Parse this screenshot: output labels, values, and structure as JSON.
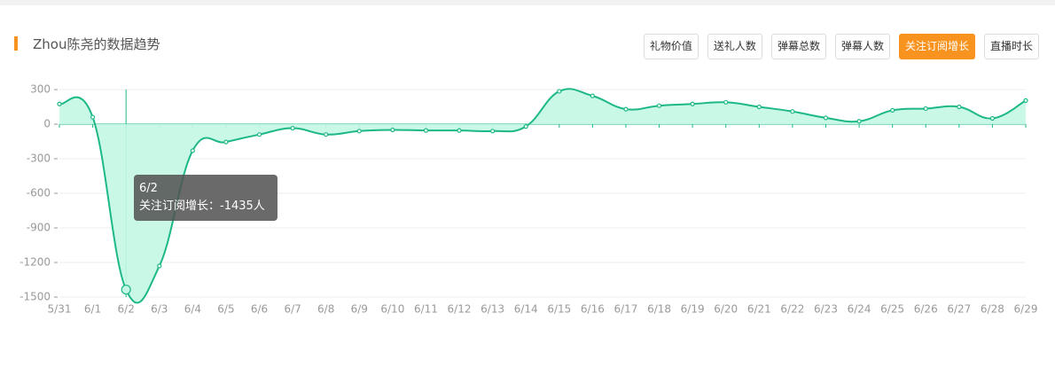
{
  "header": {
    "title": "Zhou陈尧的数据趋势",
    "buttons": [
      {
        "label": "礼物价值",
        "active": false
      },
      {
        "label": "送礼人数",
        "active": false
      },
      {
        "label": "弹幕总数",
        "active": false
      },
      {
        "label": "弹幕人数",
        "active": false
      },
      {
        "label": "关注订阅增长",
        "active": true
      },
      {
        "label": "直播时长",
        "active": false
      }
    ]
  },
  "chart_data": {
    "type": "line",
    "categories": [
      "5/31",
      "6/1",
      "6/2",
      "6/3",
      "6/4",
      "6/5",
      "6/6",
      "6/7",
      "6/8",
      "6/9",
      "6/10",
      "6/11",
      "6/12",
      "6/13",
      "6/14",
      "6/15",
      "6/16",
      "6/17",
      "6/18",
      "6/19",
      "6/20",
      "6/21",
      "6/22",
      "6/23",
      "6/24",
      "6/25",
      "6/26",
      "6/27",
      "6/28",
      "6/29"
    ],
    "series": [
      {
        "name": "关注订阅增长",
        "color": "#1db887",
        "values": [
          175,
          60,
          -1435,
          -1230,
          -230,
          -155,
          -90,
          -35,
          -90,
          -60,
          -50,
          -55,
          -55,
          -60,
          -20,
          285,
          245,
          130,
          160,
          175,
          190,
          150,
          110,
          55,
          25,
          120,
          135,
          150,
          50,
          205
        ]
      }
    ],
    "ylim": [
      -1500,
      300
    ],
    "yticks": [
      300,
      0,
      -300,
      -600,
      -900,
      -1200,
      -1500
    ],
    "grid": true,
    "tooltip_text": "关注订阅增长：-1435人"
  }
}
